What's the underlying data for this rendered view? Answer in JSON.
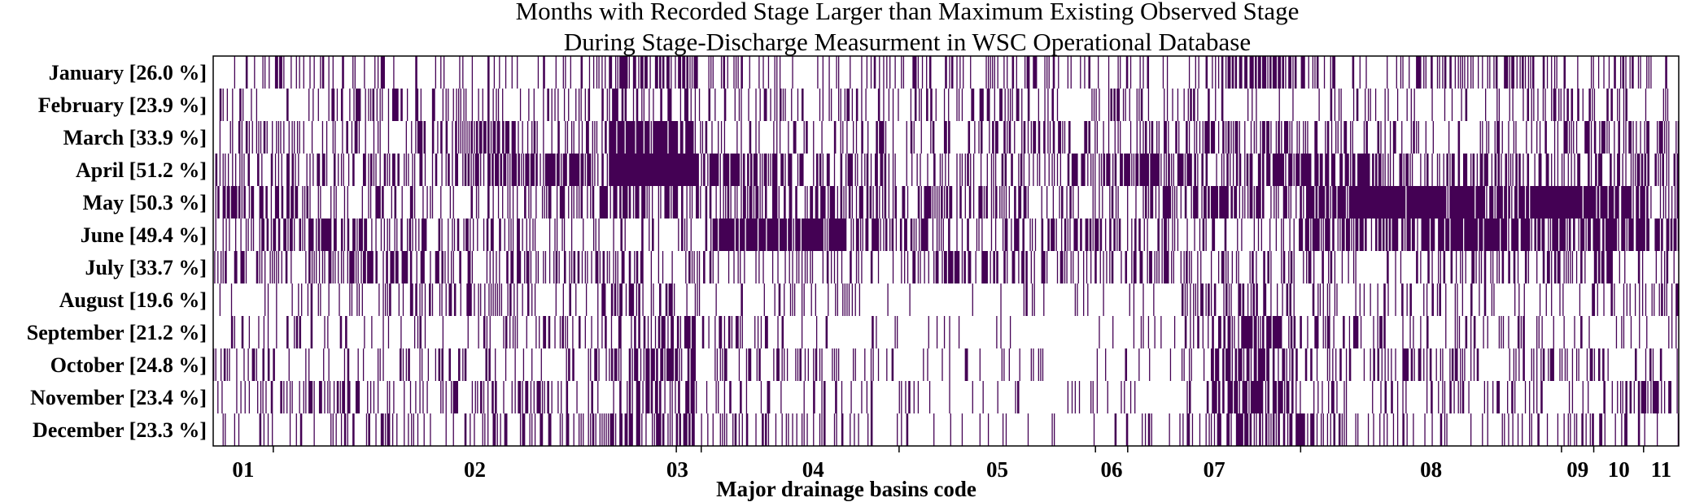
{
  "chart_data": {
    "type": "heatmap",
    "title_lines": [
      "Months with Recorded Stage Larger than Maximum Existing Observed Stage",
      "During Stage-Discharge Measurment in WSC Operational Database"
    ],
    "xlabel": "Major drainage basins code",
    "colors": {
      "event": "#440154",
      "background": "#ffffff",
      "axis": "#000000"
    },
    "rows": [
      {
        "label": "January [26.0 %]",
        "percent": 26.0
      },
      {
        "label": "February [23.9 %]",
        "percent": 23.9
      },
      {
        "label": "March [33.9 %]",
        "percent": 33.9
      },
      {
        "label": "April [51.2 %]",
        "percent": 51.2
      },
      {
        "label": "May [50.3 %]",
        "percent": 50.3
      },
      {
        "label": "June [49.4 %]",
        "percent": 49.4
      },
      {
        "label": "July [33.7 %]",
        "percent": 33.7
      },
      {
        "label": "August [19.6 %]",
        "percent": 19.6
      },
      {
        "label": "September [21.2 %]",
        "percent": 21.2
      },
      {
        "label": "October [24.8 %]",
        "percent": 24.8
      },
      {
        "label": "November [23.4 %]",
        "percent": 23.4
      },
      {
        "label": "December [23.3 %]",
        "percent": 23.3
      }
    ],
    "basins": [
      {
        "code": "01",
        "start": 0.0,
        "end": 0.041
      },
      {
        "code": "02",
        "start": 0.041,
        "end": 0.316
      },
      {
        "code": "03",
        "start": 0.316,
        "end": 0.333
      },
      {
        "code": "04",
        "start": 0.333,
        "end": 0.468
      },
      {
        "code": "05",
        "start": 0.468,
        "end": 0.602
      },
      {
        "code": "06",
        "start": 0.602,
        "end": 0.624
      },
      {
        "code": "07",
        "start": 0.624,
        "end": 0.742
      },
      {
        "code": "08",
        "start": 0.742,
        "end": 0.92
      },
      {
        "code": "09",
        "start": 0.92,
        "end": 0.942
      },
      {
        "code": "10",
        "start": 0.942,
        "end": 0.976
      },
      {
        "code": "11",
        "start": 0.976,
        "end": 1.0
      }
    ]
  }
}
